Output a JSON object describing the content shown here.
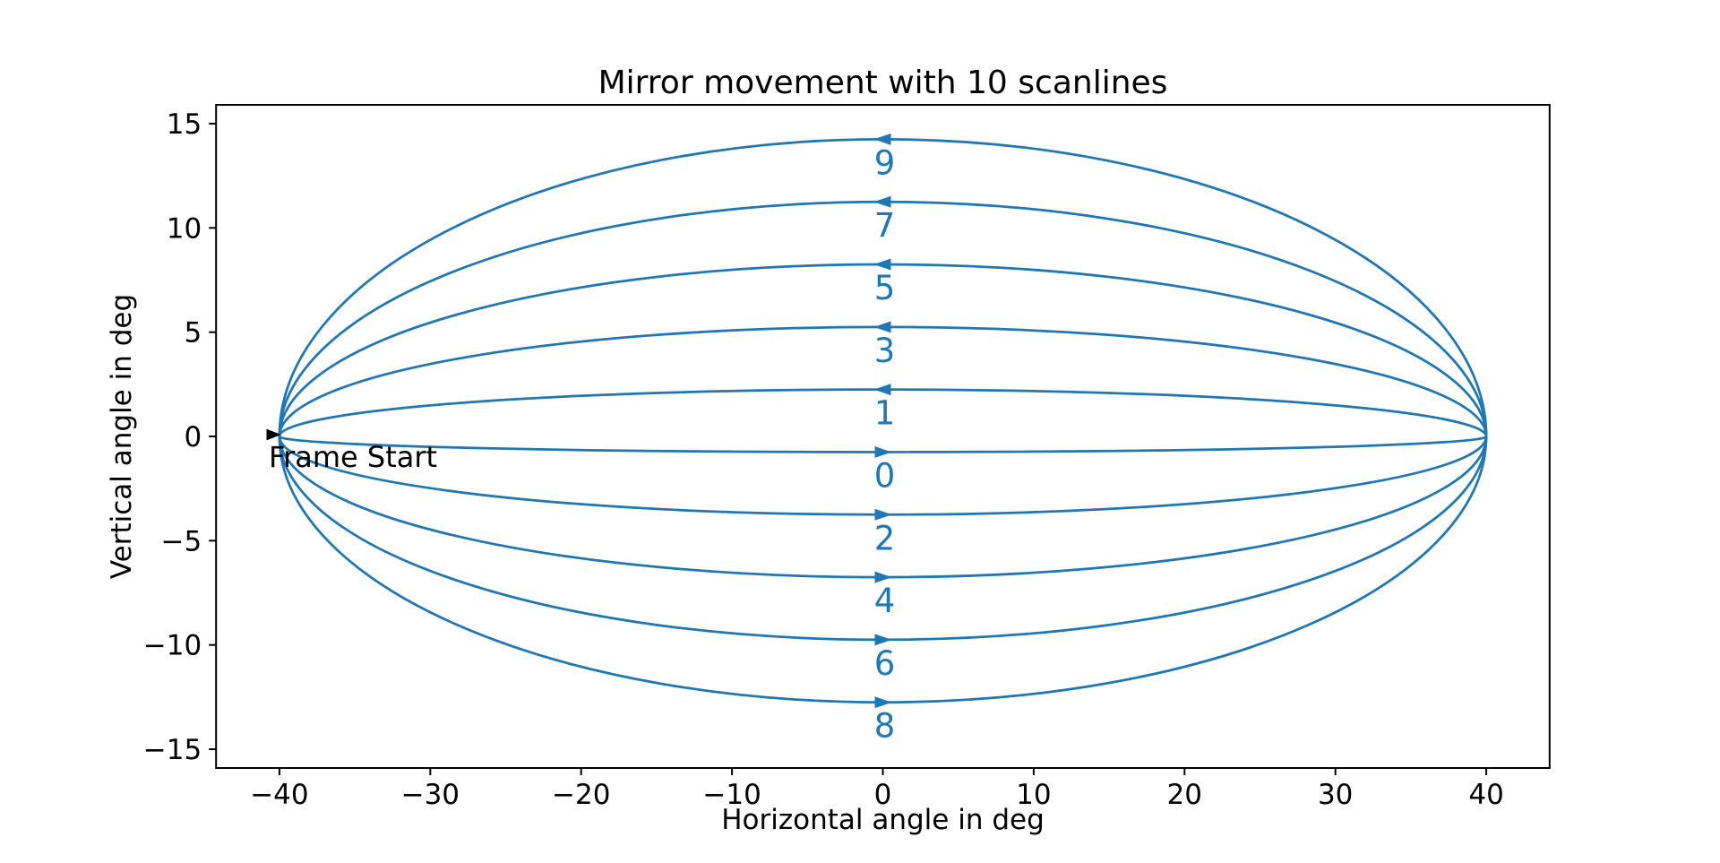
{
  "figure": {
    "background": "#ffffff"
  },
  "chart_data": {
    "type": "line",
    "title": "Mirror movement with 10 scanlines",
    "xlabel": "Horizontal angle in deg",
    "ylabel": "Vertical angle in deg",
    "xlim": [
      -44.2,
      44.2
    ],
    "ylim": [
      -15.9,
      15.9
    ],
    "grid": false,
    "legend": "none",
    "line_color": "#1f77b4",
    "spine_color": "#000000",
    "xticks": {
      "values": [
        -40,
        -30,
        -20,
        -10,
        0,
        10,
        20,
        30,
        40
      ],
      "labels": [
        "−40",
        "−30",
        "−20",
        "−10",
        "0",
        "10",
        "20",
        "30",
        "40"
      ]
    },
    "yticks": {
      "values": [
        -15,
        -10,
        -5,
        0,
        5,
        10,
        15
      ],
      "labels": [
        "−15",
        "−10",
        "−5",
        "0",
        "5",
        "10",
        "15"
      ]
    },
    "h_sweep_deg": [
      -40,
      40
    ],
    "curve_shape": "half-ellipse from (−40,0) to (+40,0) with vertical semi-axis apex_deg; apex arrow at horizontal angle 0",
    "scanlines": [
      {
        "label": "0",
        "apex_deg": -0.75,
        "direction": "right"
      },
      {
        "label": "1",
        "apex_deg": 2.25,
        "direction": "left"
      },
      {
        "label": "2",
        "apex_deg": -3.75,
        "direction": "right"
      },
      {
        "label": "3",
        "apex_deg": 5.25,
        "direction": "left"
      },
      {
        "label": "4",
        "apex_deg": -6.75,
        "direction": "right"
      },
      {
        "label": "5",
        "apex_deg": 8.25,
        "direction": "left"
      },
      {
        "label": "6",
        "apex_deg": -9.75,
        "direction": "right"
      },
      {
        "label": "7",
        "apex_deg": 11.25,
        "direction": "left"
      },
      {
        "label": "8",
        "apex_deg": -12.75,
        "direction": "right"
      },
      {
        "label": "9",
        "apex_deg": 14.25,
        "direction": "left"
      }
    ],
    "annotations": [
      {
        "text": "Frame Start",
        "xy_deg": [
          -40,
          0
        ],
        "arrow": "right",
        "color": "#000000"
      }
    ]
  }
}
